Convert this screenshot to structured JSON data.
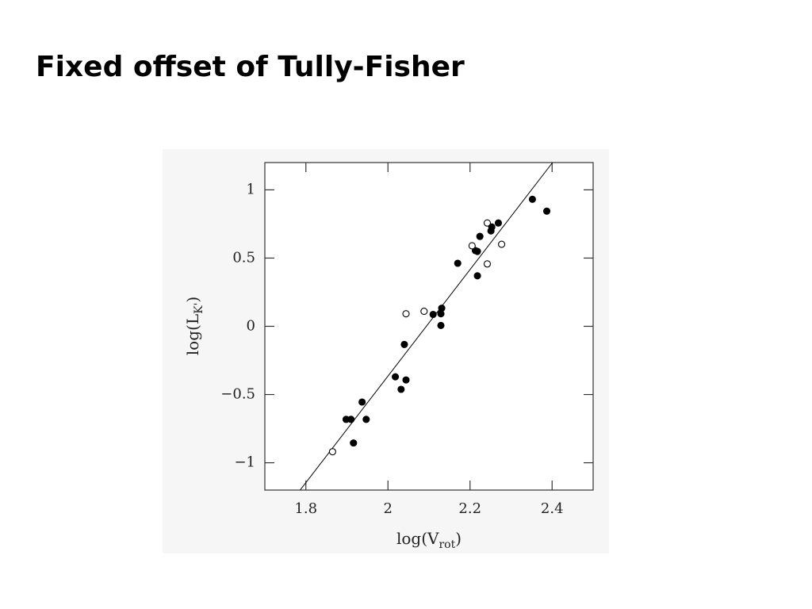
{
  "chart_data": {
    "type": "scatter",
    "title": "Fixed offset of Tully-Fisher",
    "x_label": [
      "log(V",
      "rot",
      ")"
    ],
    "y_label": [
      "log(L",
      "K'",
      ")"
    ],
    "xlim": [
      1.7,
      2.5
    ],
    "xticks": [
      1.8,
      2,
      2.2,
      2.4
    ],
    "ylim": [
      -1.2,
      1.2
    ],
    "yticks": [
      {
        "value": -1,
        "label": "−1"
      },
      {
        "value": -0.5,
        "label": "−0.5"
      },
      0,
      0.5,
      1
    ],
    "series": [
      {
        "color": "#000000",
        "marker": "filled",
        "x": [
          1.898,
          1.91,
          1.916,
          1.937,
          1.947,
          2.018,
          2.032,
          2.044,
          2.04,
          2.11,
          2.129,
          2.131,
          2.129,
          2.17,
          2.213,
          2.218,
          2.218,
          2.224,
          2.251,
          2.253,
          2.269,
          2.352,
          2.387
        ],
        "values": [
          -0.682,
          -0.682,
          -0.855,
          -0.555,
          -0.682,
          -0.37,
          -0.462,
          -0.393,
          -0.133,
          0.087,
          0.092,
          0.133,
          0.006,
          0.462,
          0.555,
          0.549,
          0.37,
          0.659,
          0.699,
          0.728,
          0.757,
          0.931,
          0.844
        ]
      },
      {
        "color": "#000000",
        "marker": "open",
        "x": [
          1.865,
          2.044,
          2.088,
          2.205,
          2.242,
          2.242,
          2.277
        ],
        "values": [
          -0.919,
          0.092,
          0.11,
          0.59,
          0.757,
          0.457,
          0.601
        ]
      }
    ],
    "fit_line": {
      "color": "#000000",
      "x": [
        1.786,
        2.401
      ],
      "y": [
        -1.2,
        1.2
      ]
    }
  }
}
